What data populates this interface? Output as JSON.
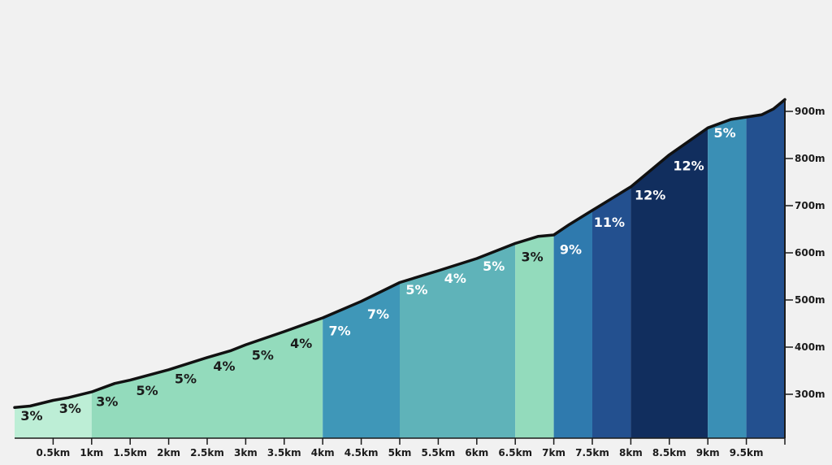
{
  "chart_data": {
    "type": "area",
    "title": "",
    "xlabel": "",
    "ylabel": "",
    "x_unit": "km",
    "y_unit": "m",
    "xlim": [
      0,
      10
    ],
    "ylim": [
      210,
      940
    ],
    "x_ticks": [
      "0.5km",
      "1km",
      "1.5km",
      "2km",
      "2.5km",
      "3km",
      "3.5km",
      "4km",
      "4.5km",
      "5km",
      "5.5km",
      "6km",
      "6.5km",
      "7km",
      "7.5km",
      "8km",
      "8.5km",
      "9km",
      "9.5km"
    ],
    "y_ticks": [
      "300m",
      "400m",
      "500m",
      "600m",
      "700m",
      "800m",
      "900m"
    ],
    "profile": [
      {
        "km": 0.0,
        "elev": 272
      },
      {
        "km": 0.2,
        "elev": 275
      },
      {
        "km": 0.5,
        "elev": 287
      },
      {
        "km": 0.7,
        "elev": 293
      },
      {
        "km": 1.0,
        "elev": 305
      },
      {
        "km": 1.3,
        "elev": 323
      },
      {
        "km": 1.5,
        "elev": 330
      },
      {
        "km": 2.0,
        "elev": 352
      },
      {
        "km": 2.5,
        "elev": 378
      },
      {
        "km": 2.8,
        "elev": 392
      },
      {
        "km": 3.0,
        "elev": 405
      },
      {
        "km": 3.5,
        "elev": 433
      },
      {
        "km": 4.0,
        "elev": 462
      },
      {
        "km": 4.5,
        "elev": 497
      },
      {
        "km": 5.0,
        "elev": 537
      },
      {
        "km": 5.5,
        "elev": 562
      },
      {
        "km": 6.0,
        "elev": 588
      },
      {
        "km": 6.5,
        "elev": 620
      },
      {
        "km": 6.8,
        "elev": 635
      },
      {
        "km": 7.0,
        "elev": 638
      },
      {
        "km": 7.2,
        "elev": 660
      },
      {
        "km": 7.5,
        "elev": 690
      },
      {
        "km": 8.0,
        "elev": 740
      },
      {
        "km": 8.5,
        "elev": 808
      },
      {
        "km": 9.0,
        "elev": 865
      },
      {
        "km": 9.3,
        "elev": 883
      },
      {
        "km": 9.7,
        "elev": 893
      },
      {
        "km": 9.85,
        "elev": 905
      },
      {
        "km": 10.0,
        "elev": 925
      }
    ],
    "segments": [
      {
        "start": 0.0,
        "end": 1.0,
        "color": "#bdeed6",
        "labels": [
          {
            "text": "3%",
            "km": 0.22,
            "elev": 245,
            "color": "#1b1b1b"
          },
          {
            "text": "3%",
            "km": 0.72,
            "elev": 260,
            "color": "#1b1b1b"
          }
        ]
      },
      {
        "start": 1.0,
        "end": 4.0,
        "color": "#93dbbc",
        "labels": [
          {
            "text": "3%",
            "km": 1.2,
            "elev": 275,
            "color": "#1b1b1b"
          },
          {
            "text": "5%",
            "km": 1.72,
            "elev": 298,
            "color": "#1b1b1b"
          },
          {
            "text": "5%",
            "km": 2.22,
            "elev": 323,
            "color": "#1b1b1b"
          },
          {
            "text": "4%",
            "km": 2.72,
            "elev": 350,
            "color": "#1b1b1b"
          },
          {
            "text": "5%",
            "km": 3.22,
            "elev": 373,
            "color": "#1b1b1b"
          },
          {
            "text": "4%",
            "km": 3.72,
            "elev": 398,
            "color": "#1b1b1b"
          }
        ]
      },
      {
        "start": 4.0,
        "end": 5.0,
        "color": "#3f97b8",
        "labels": [
          {
            "text": "7%",
            "km": 4.22,
            "elev": 425,
            "color": "#ffffff"
          },
          {
            "text": "7%",
            "km": 4.72,
            "elev": 460,
            "color": "#ffffff"
          }
        ]
      },
      {
        "start": 5.0,
        "end": 6.5,
        "color": "#5fb3b9",
        "labels": [
          {
            "text": "5%",
            "km": 5.22,
            "elev": 512,
            "color": "#ffffff"
          },
          {
            "text": "4%",
            "km": 5.72,
            "elev": 536,
            "color": "#ffffff"
          },
          {
            "text": "5%",
            "km": 6.22,
            "elev": 562,
            "color": "#ffffff"
          }
        ]
      },
      {
        "start": 6.5,
        "end": 7.0,
        "color": "#93dbbc",
        "labels": [
          {
            "text": "3%",
            "km": 6.72,
            "elev": 582,
            "color": "#1b1b1b"
          }
        ]
      },
      {
        "start": 7.0,
        "end": 7.5,
        "color": "#2f7aae",
        "labels": [
          {
            "text": "9%",
            "km": 7.22,
            "elev": 597,
            "color": "#ffffff"
          }
        ]
      },
      {
        "start": 7.5,
        "end": 8.0,
        "color": "#23508f",
        "labels": [
          {
            "text": "11%",
            "km": 7.72,
            "elev": 655,
            "color": "#ffffff"
          }
        ]
      },
      {
        "start": 8.0,
        "end": 9.0,
        "color": "#112e5e",
        "labels": [
          {
            "text": "12%",
            "km": 8.25,
            "elev": 713,
            "color": "#ffffff"
          },
          {
            "text": "12%",
            "km": 8.75,
            "elev": 775,
            "color": "#ffffff"
          }
        ]
      },
      {
        "start": 9.0,
        "end": 9.5,
        "color": "#3a8fb5",
        "labels": [
          {
            "text": "5%",
            "km": 9.22,
            "elev": 845,
            "color": "#ffffff"
          }
        ]
      },
      {
        "start": 9.5,
        "end": 10.0,
        "color": "#23508f",
        "labels": []
      }
    ],
    "grid": false,
    "legend": null
  },
  "colors": {
    "background": "#f1f1f1",
    "line": "#111111",
    "axis": "#1b1b1b"
  }
}
